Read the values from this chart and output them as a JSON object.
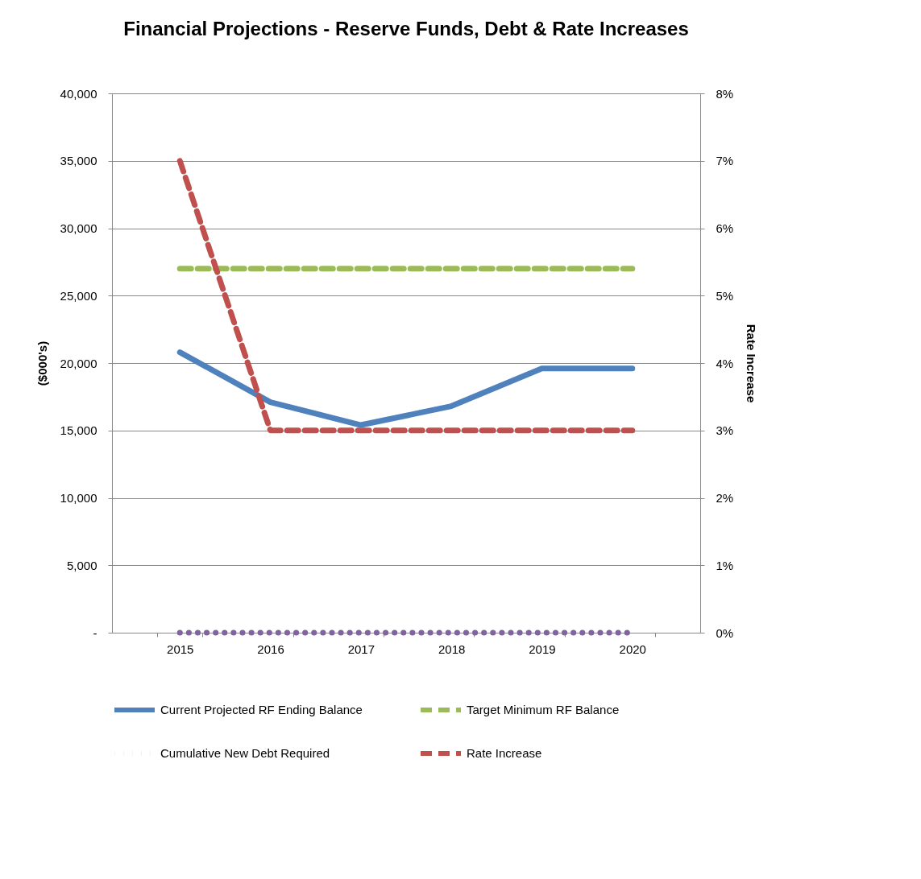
{
  "chart_data": {
    "type": "line",
    "title": "Financial Projections - Reserve Funds, Debt & Rate Increases",
    "ylabel": "($000's)",
    "y2label": "Rate Increase",
    "categories": [
      "2015",
      "2016",
      "2017",
      "2018",
      "2019",
      "2020"
    ],
    "ylim": [
      0,
      40000
    ],
    "yticks": [
      {
        "value": 0,
        "label": "-"
      },
      {
        "value": 5000,
        "label": "5,000"
      },
      {
        "value": 10000,
        "label": "10,000"
      },
      {
        "value": 15000,
        "label": "15,000"
      },
      {
        "value": 20000,
        "label": "20,000"
      },
      {
        "value": 25000,
        "label": "25,000"
      },
      {
        "value": 30000,
        "label": "30,000"
      },
      {
        "value": 35000,
        "label": "35,000"
      },
      {
        "value": 40000,
        "label": "40,000"
      }
    ],
    "y2lim": [
      0,
      8
    ],
    "y2ticks": [
      {
        "value": 0,
        "label": "0%"
      },
      {
        "value": 1,
        "label": "1%"
      },
      {
        "value": 2,
        "label": "2%"
      },
      {
        "value": 3,
        "label": "3%"
      },
      {
        "value": 4,
        "label": "4%"
      },
      {
        "value": 5,
        "label": "5%"
      },
      {
        "value": 6,
        "label": "6%"
      },
      {
        "value": 7,
        "label": "7%"
      },
      {
        "value": 8,
        "label": "8%"
      }
    ],
    "grid": "y",
    "legend": "bottom",
    "series": [
      {
        "name": "Current Projected RF Ending Balance",
        "color": "#4f81bd",
        "line_style": "solid",
        "values": [
          20800,
          17100,
          15400,
          16800,
          19600,
          19600
        ]
      },
      {
        "name": "Target Minimum RF Balance",
        "color": "#9bbb59",
        "line_style": "dashed",
        "values": [
          27000,
          27000,
          27000,
          27000,
          27000,
          27000
        ]
      },
      {
        "name": "Cumulative New Debt Required",
        "color": "#8064a2",
        "line_style": "dotted",
        "values": [
          0,
          0,
          0,
          0,
          0,
          0
        ]
      },
      {
        "name": "Rate Increase",
        "color": "#c0504d",
        "line_style": "dashed",
        "axis": "y2",
        "values": [
          7,
          3,
          3,
          3,
          3,
          3
        ]
      }
    ]
  }
}
